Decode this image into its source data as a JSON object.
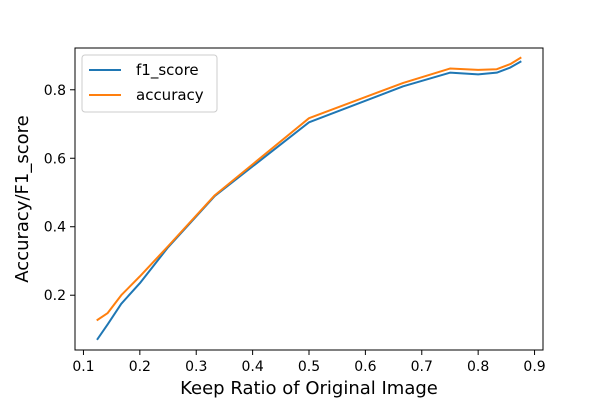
{
  "chart_data": {
    "type": "line",
    "title": "",
    "xlabel": "Keep Ratio of Original Image",
    "ylabel": "Accuracy/F1_score",
    "xlim": [
      0.085,
      0.915
    ],
    "ylim": [
      0.04,
      0.922
    ],
    "xticks": [
      0.1,
      0.2,
      0.3,
      0.4,
      0.5,
      0.6,
      0.7,
      0.8,
      0.9
    ],
    "xtick_labels": [
      "0.1",
      "0.2",
      "0.3",
      "0.4",
      "0.5",
      "0.6",
      "0.7",
      "0.8",
      "0.9"
    ],
    "yticks": [
      0.2,
      0.4,
      0.6,
      0.8
    ],
    "ytick_labels": [
      "0.2",
      "0.4",
      "0.6",
      "0.8"
    ],
    "grid": false,
    "legend_position": "top-left",
    "x": [
      0.125,
      0.143,
      0.167,
      0.2,
      0.25,
      0.333,
      0.5,
      0.667,
      0.75,
      0.8,
      0.833,
      0.857,
      0.875
    ],
    "series": [
      {
        "name": "f1_score",
        "color": "#1f77b4",
        "values": [
          0.072,
          0.115,
          0.175,
          0.235,
          0.34,
          0.49,
          0.705,
          0.81,
          0.85,
          0.845,
          0.85,
          0.865,
          0.882
        ]
      },
      {
        "name": "accuracy",
        "color": "#ff7f0e",
        "values": [
          0.128,
          0.148,
          0.2,
          0.255,
          0.343,
          0.492,
          0.717,
          0.82,
          0.862,
          0.858,
          0.86,
          0.875,
          0.893
        ]
      }
    ]
  }
}
